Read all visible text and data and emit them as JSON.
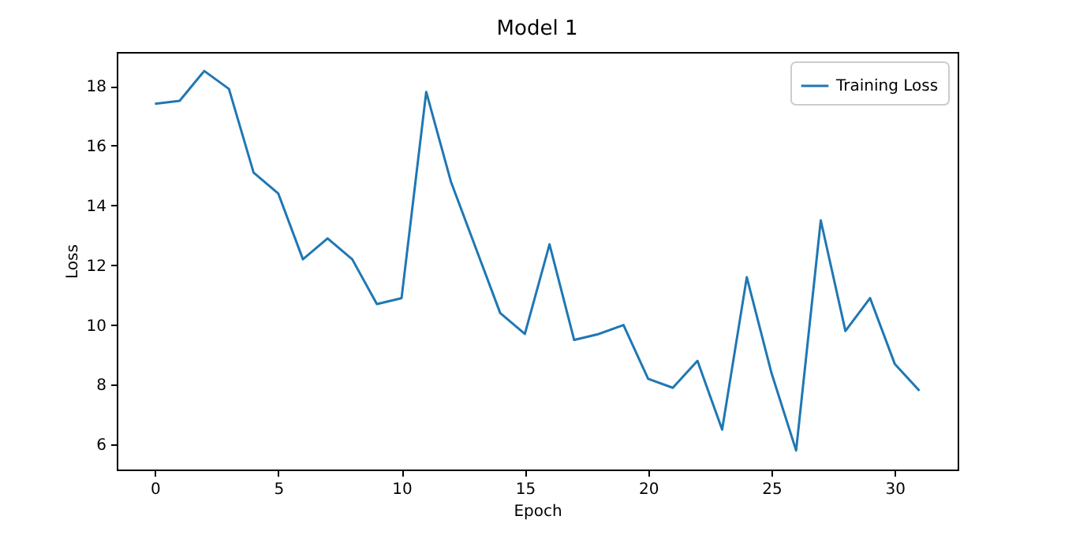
{
  "chart_data": {
    "type": "line",
    "title": "Model 1",
    "xlabel": "Epoch",
    "ylabel": "Loss",
    "x": [
      0,
      1,
      2,
      3,
      4,
      5,
      6,
      7,
      8,
      9,
      10,
      11,
      12,
      13,
      14,
      15,
      16,
      17,
      18,
      19,
      20,
      21,
      22,
      23,
      24,
      25,
      26,
      27,
      28,
      29,
      30,
      31
    ],
    "series": [
      {
        "name": "Training Loss",
        "color": "#1f77b4",
        "values": [
          17.4,
          17.5,
          18.5,
          17.9,
          15.1,
          14.4,
          12.2,
          12.9,
          12.2,
          10.7,
          10.9,
          17.8,
          14.8,
          12.6,
          10.4,
          9.7,
          12.7,
          9.5,
          9.7,
          10.0,
          8.2,
          7.9,
          8.8,
          6.5,
          11.6,
          8.4,
          5.8,
          13.5,
          9.8,
          10.9,
          8.7,
          7.8
        ]
      }
    ],
    "xlim": [
      -1.55,
      32.55
    ],
    "xticks": [
      0,
      5,
      10,
      15,
      20,
      25,
      30
    ],
    "ylim": [
      5.165,
      19.135
    ],
    "yticks": [
      6,
      8,
      10,
      12,
      14,
      16,
      18
    ],
    "grid": false,
    "legend": "top right",
    "marker": "none",
    "line_style": "solid"
  }
}
